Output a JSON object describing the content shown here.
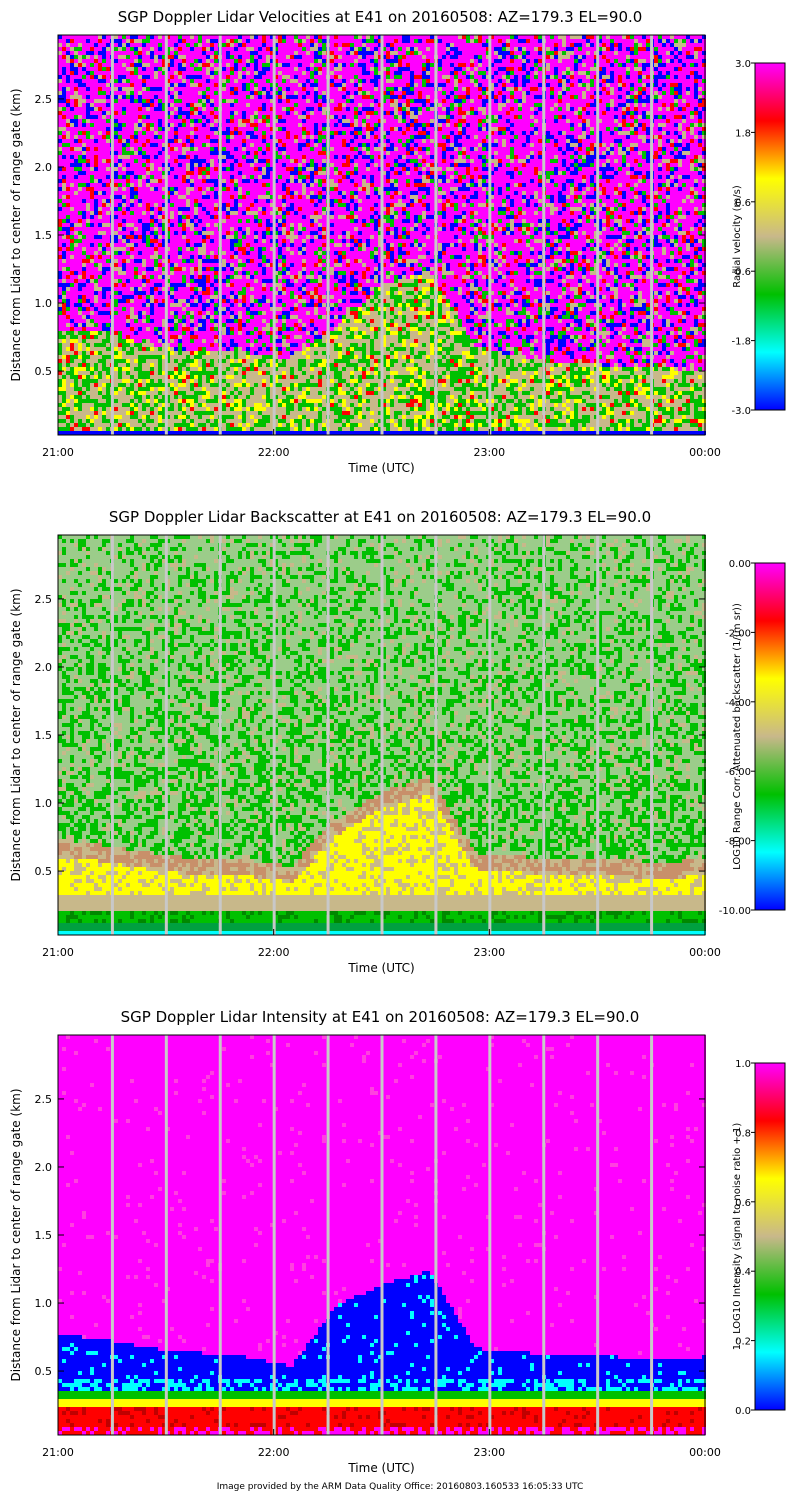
{
  "footer": "Image provided by the ARM Data Quality Office: 20160803.160533 16:05:33 UTC",
  "chart_data": [
    {
      "type": "heatmap",
      "title": "SGP Doppler Lidar Velocities at E41 on 20160508: AZ=179.3 EL=90.0",
      "xlabel": "Time (UTC)",
      "ylabel": "Distance from Lidar to center of range gate (km)",
      "x_ticks": [
        "21:00",
        "22:00",
        "23:00",
        "00:00"
      ],
      "y_ticks": [
        "0.5",
        "1.0",
        "1.5",
        "2.0",
        "2.5"
      ],
      "y_tick_values": [
        0.5,
        1.0,
        1.5,
        2.0,
        2.5
      ],
      "ylim": [
        0.03,
        2.97
      ],
      "colorbar_label": "Radial velocity (m/s)",
      "colorbar_ticks": [
        "3.0",
        "1.8",
        "0.6",
        "-0.6",
        "-1.8",
        "-3.0"
      ],
      "colorbar_range": [
        -3.0,
        3.0
      ],
      "palette": [
        "#0000ff",
        "#00ffff",
        "#00c000",
        "#c8b88a",
        "#ffff00",
        "#ff0000",
        "#ff00ff"
      ],
      "boundary_km": [
        0.8,
        0.8,
        0.7,
        0.65,
        0.65,
        0.6,
        0.85,
        1.15,
        1.25,
        0.7,
        0.6,
        0.58,
        0.55,
        0.55,
        0.5
      ]
    },
    {
      "type": "heatmap",
      "title": "SGP Doppler Lidar Backscatter at E41 on 20160508: AZ=179.3 EL=90.0",
      "xlabel": "Time (UTC)",
      "ylabel": "Distance from Lidar to center of range gate (km)",
      "x_ticks": [
        "21:00",
        "22:00",
        "23:00",
        "00:00"
      ],
      "y_ticks": [
        "0.5",
        "1.0",
        "1.5",
        "2.0",
        "2.5"
      ],
      "y_tick_values": [
        0.5,
        1.0,
        1.5,
        2.0,
        2.5
      ],
      "ylim": [
        0.03,
        2.97
      ],
      "colorbar_label": "LOG10 Range Corr. Attenuated backscatter (1/(m sr))",
      "colorbar_ticks": [
        "0.00",
        "-2.00",
        "-4.00",
        "-6.00",
        "-8.00",
        "-10.00"
      ],
      "colorbar_range": [
        -10.0,
        0.0
      ],
      "palette": [
        "#0000ff",
        "#00ffff",
        "#00c000",
        "#c8b88a",
        "#ffff00",
        "#ff0000",
        "#ff00ff"
      ],
      "boundary_km": [
        0.75,
        0.7,
        0.65,
        0.6,
        0.6,
        0.55,
        0.9,
        1.1,
        1.2,
        0.65,
        0.62,
        0.6,
        0.6,
        0.58,
        0.6
      ]
    },
    {
      "type": "heatmap",
      "title": "SGP Doppler Lidar Intensity at E41 on 20160508: AZ=179.3 EL=90.0",
      "xlabel": "Time (UTC)",
      "ylabel": "Distance from Lidar to center of range gate (km)",
      "x_ticks": [
        "21:00",
        "22:00",
        "23:00",
        "00:00"
      ],
      "y_ticks": [
        "0.5",
        "1.0",
        "1.5",
        "2.0",
        "2.5"
      ],
      "y_tick_values": [
        0.5,
        1.0,
        1.5,
        2.0,
        2.5
      ],
      "ylim": [
        0.03,
        2.97
      ],
      "colorbar_label": "1 - LOG10 Intensity (signal to noise ratio + 1)",
      "colorbar_ticks": [
        "1.0",
        "0.8",
        "0.6",
        "0.4",
        "0.2",
        "0.0"
      ],
      "colorbar_range": [
        0.0,
        1.0
      ],
      "palette": [
        "#0000ff",
        "#00ffff",
        "#00c000",
        "#c8b88a",
        "#ffff00",
        "#ff0000",
        "#ff00ff"
      ],
      "boundary_km": [
        0.78,
        0.75,
        0.68,
        0.65,
        0.62,
        0.55,
        1.0,
        1.15,
        1.25,
        0.68,
        0.65,
        0.63,
        0.62,
        0.6,
        0.62
      ]
    }
  ]
}
